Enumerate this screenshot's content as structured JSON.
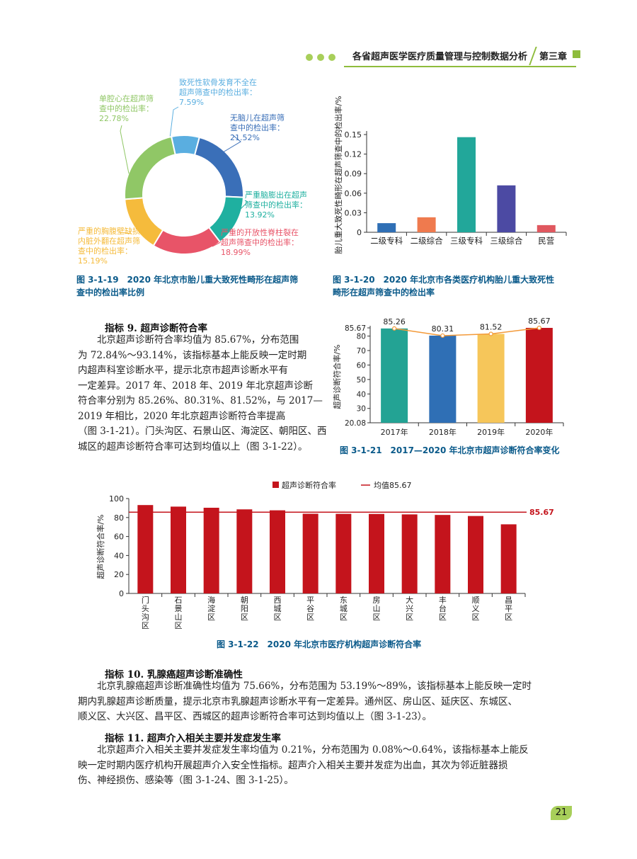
{
  "header": {
    "title": "各省超声医学医疗质量管理与控制数据分析",
    "chapter": "第三章"
  },
  "fig19": {
    "caption_line1": "图 3-1-19　2020 年北京市胎儿重大致死性畸形在超声筛",
    "caption_line2": "查中的检出率比例",
    "chart_data": {
      "type": "pie",
      "slices": [
        {
          "lines": [
            "致死性软骨发育不全在",
            "超声筛查中的检出率：",
            "7.59%"
          ],
          "value": 7.59,
          "color": "#5aaee0"
        },
        {
          "lines": [
            "无脑儿在超声筛",
            "查中的检出率：",
            "21.52%"
          ],
          "value": 21.52,
          "color": "#3a6fb8"
        },
        {
          "lines": [
            "严重脑膨出在超声",
            "筛查中的检出率：",
            "13.92%"
          ],
          "value": 13.92,
          "color": "#1fb0a0"
        },
        {
          "lines": [
            "严重的开放性脊柱裂在",
            "超声筛查中的检出率：",
            "18.99%"
          ],
          "value": 18.99,
          "color": "#e85468"
        },
        {
          "lines": [
            "严重的胸腹壁缺损",
            "内脏外翻在超声筛",
            "查中的检出率：",
            "15.19%"
          ],
          "value": 15.19,
          "color": "#f5bb3c"
        },
        {
          "lines": [
            "单腔心在超声筛",
            "查中的检出率：",
            "22.78%"
          ],
          "value": 22.78,
          "color": "#90c766"
        }
      ]
    }
  },
  "fig20": {
    "caption_line1": "图 3-1-20　2020 年北京市各类医疗机构胎儿重大致死性",
    "caption_line2": "畸形在超声筛查中的检出率",
    "chart_data": {
      "type": "bar",
      "ylabel": "胎儿重大致死性畸形在超声筛查中的检出率/%",
      "ylim": [
        0,
        0.15
      ],
      "yticks": [
        "0",
        "0.03",
        "0.06",
        "0.09",
        "0.12",
        "0.15"
      ],
      "categories": [
        "二级专科",
        "二级综合",
        "三级专科",
        "三级综合",
        "民营"
      ],
      "values": [
        0.014,
        0.023,
        0.146,
        0.072,
        0.011
      ],
      "colors": [
        "#2f6fb5",
        "#ef7a4e",
        "#22a79a",
        "#4c4aa3",
        "#e0585f"
      ]
    }
  },
  "text1": {
    "heading": "指标 9. 超声诊断符合率",
    "lines": [
      "北京超声诊断符合率均值为 85.67%，分布范围",
      "为 72.84%～93.14%，该指标基本上能反映一定时期",
      "内超声科室诊断水平，提示北京市超声诊断水平有",
      "一定差异。2017 年、2018 年、2019 年北京超声诊断",
      "符合率分别为 85.26%、80.31%、81.52%，与 2017—",
      "2019 年相比，2020 年北京超声诊断符合率提高",
      "（图 3-1-21）。门头沟区、石景山区、海淀区、朝阳区、西",
      "城区的超声诊断符合率可达到均值以上（图 3-1-22）。"
    ]
  },
  "fig21": {
    "caption": "图 3-1-21　2017—2020 年北京市超声诊断符合率变化",
    "chart_data": {
      "type": "bar",
      "ylabel": "超声诊断符合率/%",
      "ylim": [
        20.08,
        85.67
      ],
      "yticks": [
        "20.08",
        "30",
        "40",
        "50",
        "60",
        "70",
        "80",
        "85.67"
      ],
      "categories": [
        "2017年",
        "2018年",
        "2019年",
        "2020年"
      ],
      "values": [
        85.26,
        80.31,
        81.52,
        85.67
      ],
      "value_labels": [
        "85.26",
        "80.31",
        "81.52",
        "85.67"
      ],
      "colors": [
        "#23a394",
        "#2f6fb5",
        "#f6c65a",
        "#c4141c"
      ],
      "line_color": "#f39a3a"
    }
  },
  "fig22": {
    "caption": "图 3-1-22　2020 年北京市医疗机构超声诊断符合率",
    "chart_data": {
      "type": "bar",
      "ylabel": "超声诊断符合率/%",
      "ylim": [
        0,
        100
      ],
      "yticks": [
        "0",
        "20",
        "40",
        "60",
        "80",
        "100"
      ],
      "legend_bar": "超声诊断符合率",
      "legend_line": "均值85.67",
      "mean": 85.67,
      "mean_label": "85.67",
      "categories": [
        "门头沟区",
        "石景山区",
        "海淀区",
        "朝阳区",
        "西城区",
        "平谷区",
        "东城区",
        "房山区",
        "大兴区",
        "丰台区",
        "顺义区",
        "昌平区"
      ],
      "values": [
        93.14,
        91.5,
        90.3,
        88.6,
        87.6,
        84.0,
        83.9,
        83.8,
        83.3,
        82.7,
        81.6,
        72.84
      ],
      "bar_color": "#c4141c",
      "line_color": "#c4141c"
    }
  },
  "text2": {
    "heading": "指标 10. 乳腺癌超声诊断准确性",
    "lines": [
      "北京乳腺癌超声诊断准确性均值为 75.66%，分布范围为 53.19%～89%，该指标基本上能反映一定时",
      "期内乳腺超声诊断质量，提示北京市乳腺超声诊断水平有一定差异。通州区、房山区、延庆区、东城区、",
      "顺义区、大兴区、昌平区、西城区的超声诊断符合率可达到均值以上（图 3-1-23）。"
    ]
  },
  "text3": {
    "heading": "指标 11. 超声介入相关主要并发症发生率",
    "lines": [
      "北京超声介入相关主要并发症发生率均值为 0.21%，分布范围为 0.08%～0.64%，该指标基本上能反",
      "映一定时期内医疗机构开展超声介入安全性指标。超声介入相关主要并发症为出血，其次为邻近脏器损",
      "伤、神经损伤、感染等（图 3-1-24、图 3-1-25）。"
    ]
  },
  "page_number": "21"
}
